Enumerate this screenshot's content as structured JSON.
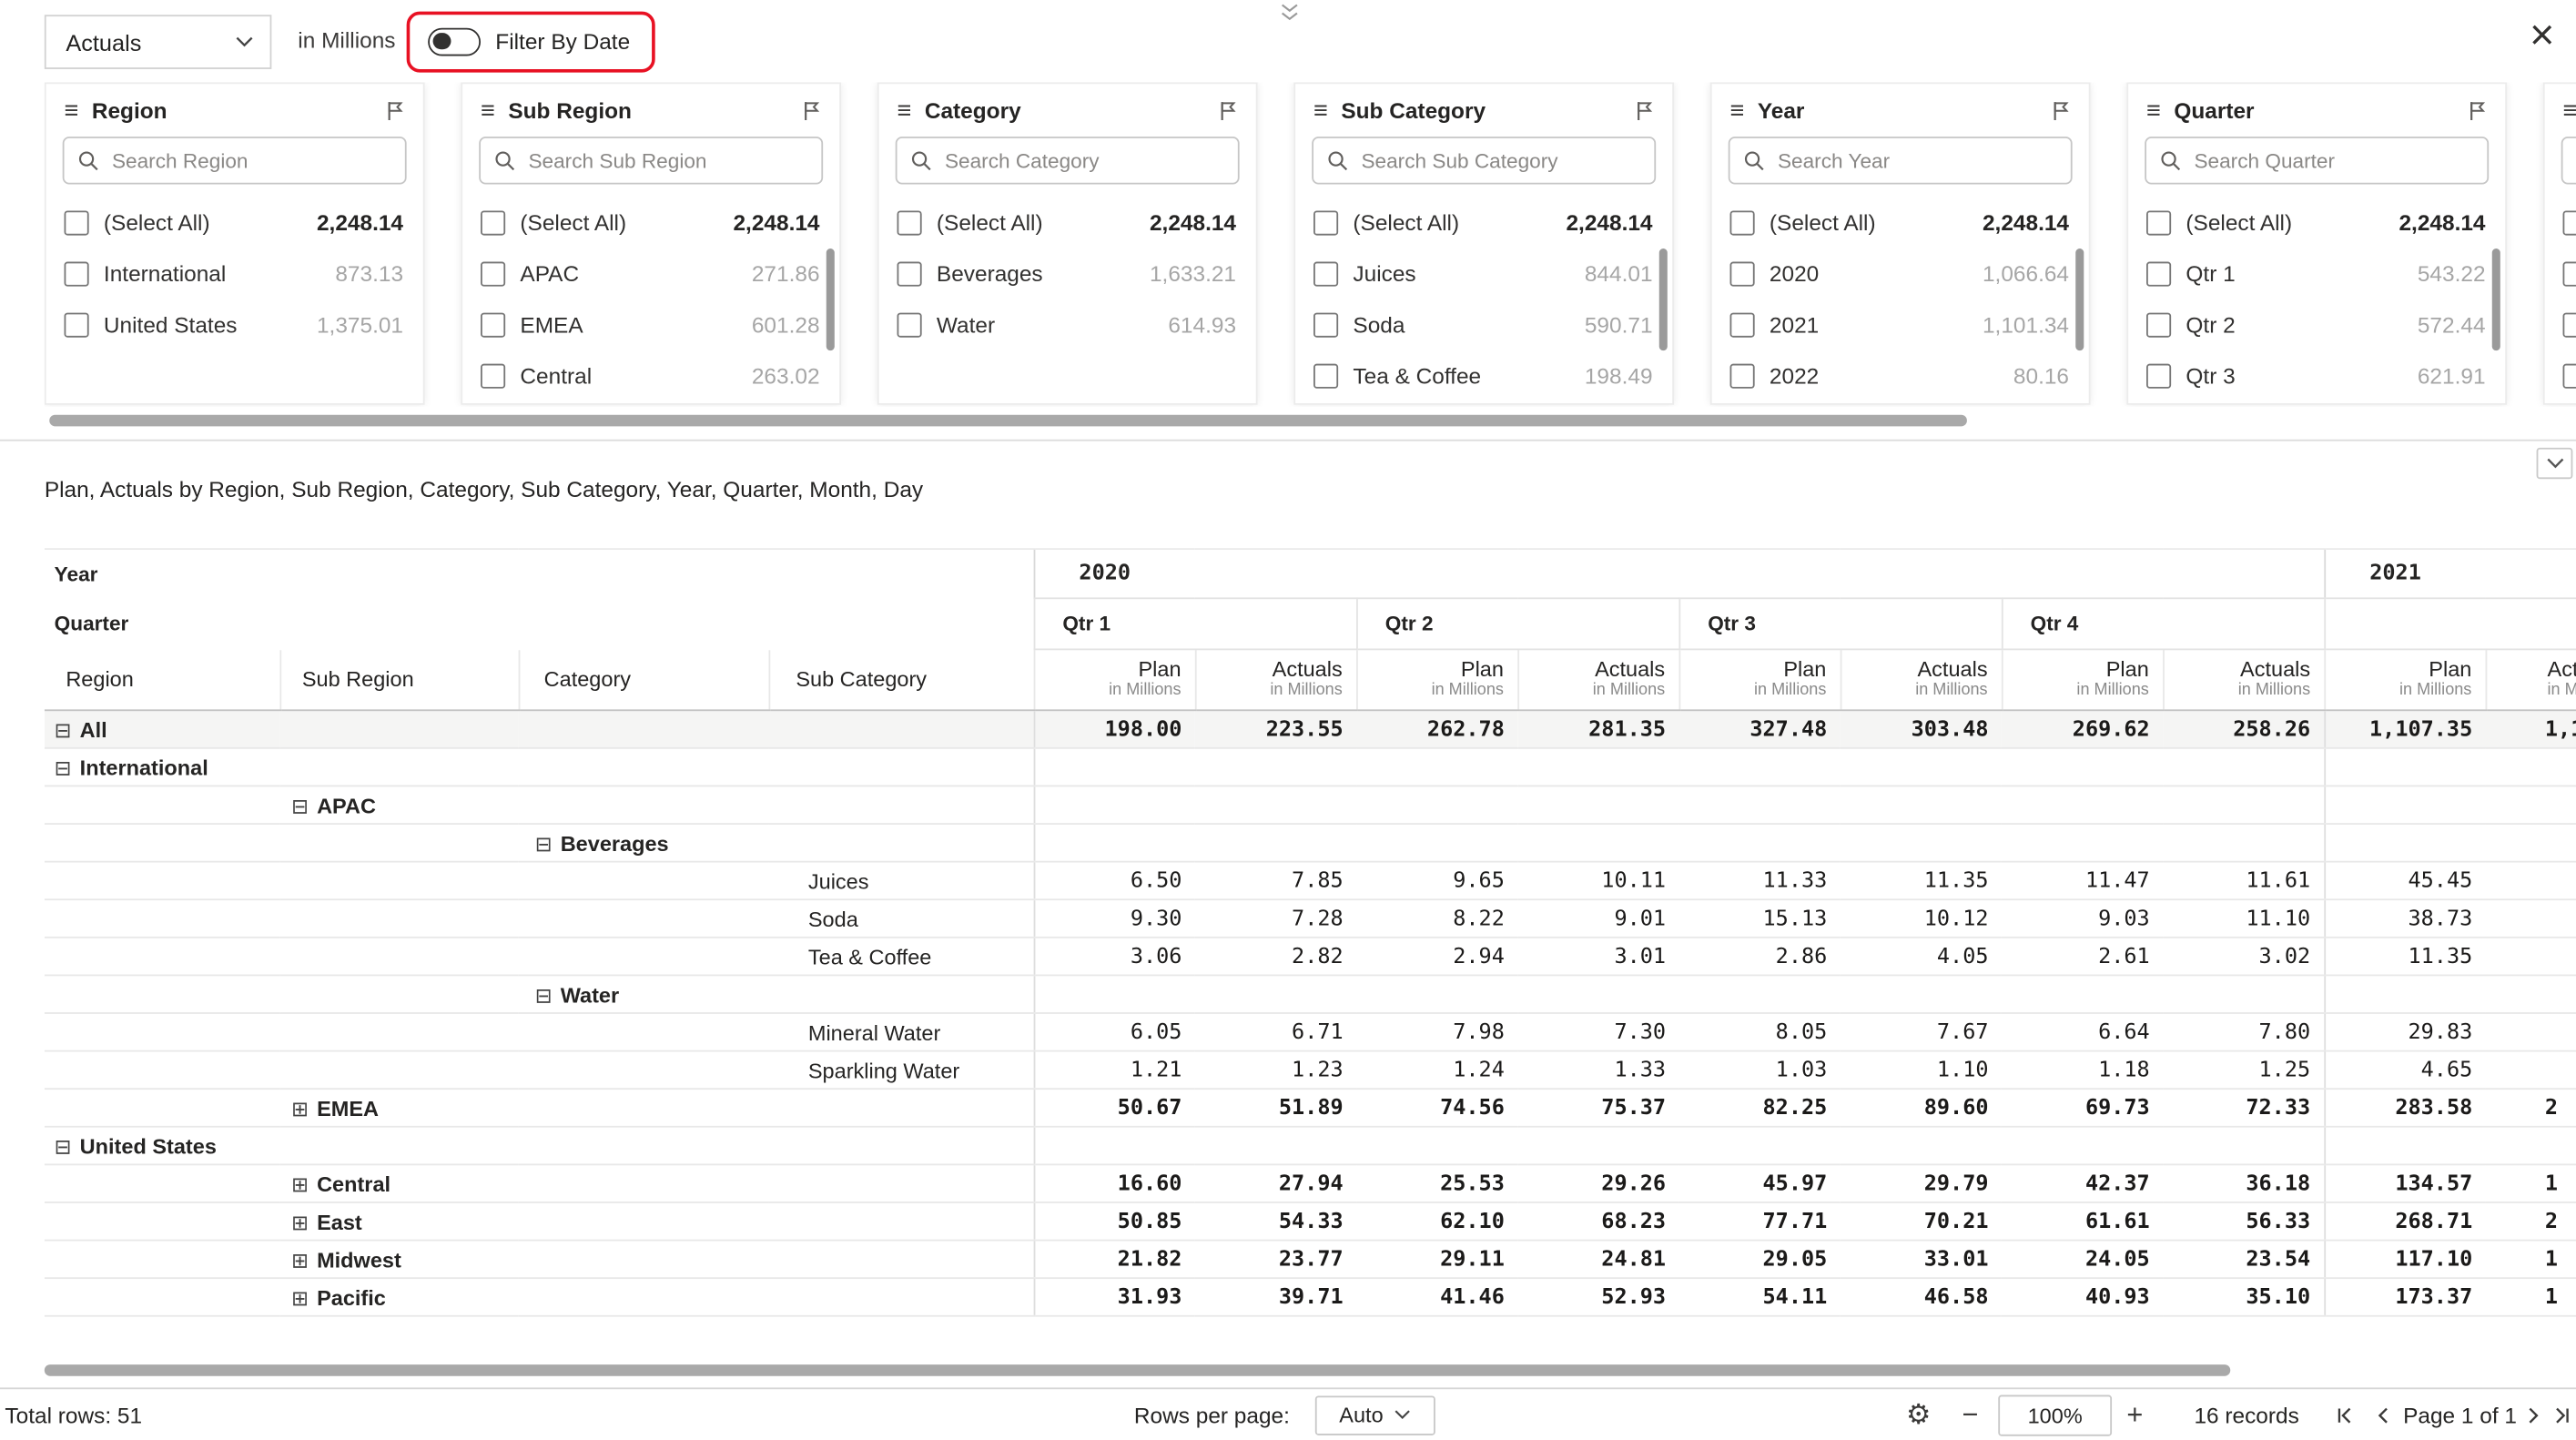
{
  "colors": {
    "annotation": "#e81123"
  },
  "topbar": {
    "measure_value": "Actuals",
    "unit_label": "in Millions",
    "filter_toggle_label": "Filter By Date"
  },
  "slicers": [
    {
      "title": "Region",
      "placeholder": "Search Region",
      "scrollbar": false,
      "items": [
        {
          "label": "(Select All)",
          "value": "2,248.14",
          "selectall": true
        },
        {
          "label": "International",
          "value": "873.13"
        },
        {
          "label": "United States",
          "value": "1,375.01"
        }
      ]
    },
    {
      "title": "Sub Region",
      "placeholder": "Search Sub Region",
      "scrollbar": true,
      "items": [
        {
          "label": "(Select All)",
          "value": "2,248.14",
          "selectall": true
        },
        {
          "label": "APAC",
          "value": "271.86"
        },
        {
          "label": "EMEA",
          "value": "601.28"
        },
        {
          "label": "Central",
          "value": "263.02"
        }
      ]
    },
    {
      "title": "Category",
      "placeholder": "Search Category",
      "scrollbar": false,
      "items": [
        {
          "label": "(Select All)",
          "value": "2,248.14",
          "selectall": true
        },
        {
          "label": "Beverages",
          "value": "1,633.21"
        },
        {
          "label": "Water",
          "value": "614.93"
        }
      ]
    },
    {
      "title": "Sub Category",
      "placeholder": "Search Sub Category",
      "scrollbar": true,
      "items": [
        {
          "label": "(Select All)",
          "value": "2,248.14",
          "selectall": true
        },
        {
          "label": "Juices",
          "value": "844.01"
        },
        {
          "label": "Soda",
          "value": "590.71"
        },
        {
          "label": "Tea & Coffee",
          "value": "198.49"
        }
      ]
    },
    {
      "title": "Year",
      "placeholder": "Search Year",
      "scrollbar": true,
      "items": [
        {
          "label": "(Select All)",
          "value": "2,248.14",
          "selectall": true
        },
        {
          "label": "2020",
          "value": "1,066.64"
        },
        {
          "label": "2021",
          "value": "1,101.34"
        },
        {
          "label": "2022",
          "value": "80.16"
        }
      ]
    },
    {
      "title": "Quarter",
      "placeholder": "Search Quarter",
      "scrollbar": true,
      "items": [
        {
          "label": "(Select All)",
          "value": "2,248.14",
          "selectall": true
        },
        {
          "label": "Qtr 1",
          "value": "543.22"
        },
        {
          "label": "Qtr 2",
          "value": "572.44"
        },
        {
          "label": "Qtr 3",
          "value": "621.91"
        }
      ]
    },
    {
      "title": "",
      "placeholder": "",
      "scrollbar": false,
      "partial": true,
      "items": [
        {
          "label": "",
          "value": ""
        },
        {
          "label": "",
          "value": ""
        },
        {
          "label": "",
          "value": ""
        },
        {
          "label": "",
          "value": ""
        }
      ]
    }
  ],
  "matrix": {
    "title": "Plan, Actuals by Region, Sub Region, Category, Sub Category, Year, Quarter, Month, Day",
    "year_row_label": "Year",
    "quarter_row_label": "Quarter",
    "years": [
      {
        "label": "2020",
        "span": 8,
        "quarters": [
          "Qtr 1",
          "Qtr 2",
          "Qtr 3",
          "Qtr 4"
        ]
      },
      {
        "label": "2021",
        "span": 2,
        "quarters": []
      }
    ],
    "row_header_columns": [
      "Region",
      "Sub Region",
      "Category",
      "Sub Category"
    ],
    "value_columns": [
      "Plan",
      "Actuals",
      "Plan",
      "Actuals",
      "Plan",
      "Actuals",
      "Plan",
      "Actuals",
      "Plan",
      "Actuals"
    ],
    "measure_sublabel": "in Millions",
    "rows": [
      {
        "col": 0,
        "expand": "collapse",
        "label": "All",
        "bold": true,
        "shaded": true,
        "values": [
          "198.00",
          "223.55",
          "262.78",
          "281.35",
          "327.48",
          "303.48",
          "269.62",
          "258.26",
          "1,107.35",
          "1,1"
        ]
      },
      {
        "col": 0,
        "expand": "collapse",
        "label": "International",
        "bold": true,
        "values": [
          "",
          "",
          "",
          "",
          "",
          "",
          "",
          "",
          "",
          ""
        ]
      },
      {
        "col": 1,
        "expand": "collapse",
        "label": "APAC",
        "bold": true,
        "values": [
          "",
          "",
          "",
          "",
          "",
          "",
          "",
          "",
          "",
          ""
        ]
      },
      {
        "col": 2,
        "expand": "collapse",
        "label": "Beverages",
        "bold": true,
        "values": [
          "",
          "",
          "",
          "",
          "",
          "",
          "",
          "",
          "",
          ""
        ]
      },
      {
        "col": 3,
        "expand": "none",
        "label": "Juices",
        "bold": false,
        "values": [
          "6.50",
          "7.85",
          "9.65",
          "10.11",
          "11.33",
          "11.35",
          "11.47",
          "11.61",
          "45.45",
          ""
        ]
      },
      {
        "col": 3,
        "expand": "none",
        "label": "Soda",
        "bold": false,
        "values": [
          "9.30",
          "7.28",
          "8.22",
          "9.01",
          "15.13",
          "10.12",
          "9.03",
          "11.10",
          "38.73",
          ""
        ]
      },
      {
        "col": 3,
        "expand": "none",
        "label": "Tea & Coffee",
        "bold": false,
        "values": [
          "3.06",
          "2.82",
          "2.94",
          "3.01",
          "2.86",
          "4.05",
          "2.61",
          "3.02",
          "11.35",
          ""
        ]
      },
      {
        "col": 2,
        "expand": "collapse",
        "label": "Water",
        "bold": true,
        "values": [
          "",
          "",
          "",
          "",
          "",
          "",
          "",
          "",
          "",
          ""
        ]
      },
      {
        "col": 3,
        "expand": "none",
        "label": "Mineral Water",
        "bold": false,
        "values": [
          "6.05",
          "6.71",
          "7.98",
          "7.30",
          "8.05",
          "7.67",
          "6.64",
          "7.80",
          "29.83",
          ""
        ]
      },
      {
        "col": 3,
        "expand": "none",
        "label": "Sparkling Water",
        "bold": false,
        "values": [
          "1.21",
          "1.23",
          "1.24",
          "1.33",
          "1.03",
          "1.10",
          "1.18",
          "1.25",
          "4.65",
          ""
        ]
      },
      {
        "col": 1,
        "expand": "expand",
        "label": "EMEA",
        "bold": true,
        "values": [
          "50.67",
          "51.89",
          "74.56",
          "75.37",
          "82.25",
          "89.60",
          "69.73",
          "72.33",
          "283.58",
          "2"
        ]
      },
      {
        "col": 0,
        "expand": "collapse",
        "label": "United States",
        "bold": true,
        "values": [
          "",
          "",
          "",
          "",
          "",
          "",
          "",
          "",
          "",
          ""
        ]
      },
      {
        "col": 1,
        "expand": "expand",
        "label": "Central",
        "bold": true,
        "values": [
          "16.60",
          "27.94",
          "25.53",
          "29.26",
          "45.97",
          "29.79",
          "42.37",
          "36.18",
          "134.57",
          "1"
        ]
      },
      {
        "col": 1,
        "expand": "expand",
        "label": "East",
        "bold": true,
        "values": [
          "50.85",
          "54.33",
          "62.10",
          "68.23",
          "77.71",
          "70.21",
          "61.61",
          "56.33",
          "268.71",
          "2"
        ]
      },
      {
        "col": 1,
        "expand": "expand",
        "label": "Midwest",
        "bold": true,
        "values": [
          "21.82",
          "23.77",
          "29.11",
          "24.81",
          "29.05",
          "33.01",
          "24.05",
          "23.54",
          "117.10",
          "1"
        ]
      },
      {
        "col": 1,
        "expand": "expand",
        "label": "Pacific",
        "bold": true,
        "values": [
          "31.93",
          "39.71",
          "41.46",
          "52.93",
          "54.11",
          "46.58",
          "40.93",
          "35.10",
          "173.37",
          "1"
        ]
      }
    ]
  },
  "footer": {
    "total_rows": "Total rows: 51",
    "rows_per_page_label": "Rows per page:",
    "rows_per_page_value": "Auto",
    "zoom_value": "100%",
    "records_label": "16 records",
    "page_label": "Page 1 of 1"
  }
}
